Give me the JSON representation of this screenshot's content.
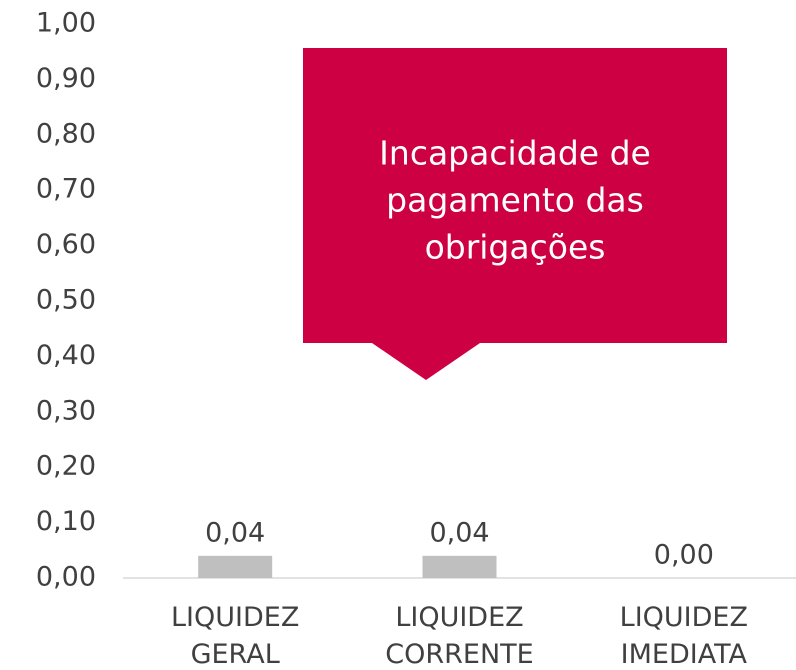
{
  "chart_data": {
    "type": "bar",
    "categories": [
      "LIQUIDEZ GERAL",
      "LIQUIDEZ CORRENTE",
      "LIQUIDEZ IMEDIATA"
    ],
    "values": [
      0.04,
      0.04,
      0.0
    ],
    "value_labels": [
      "0,04",
      "0,04",
      "0,00"
    ],
    "color": "#bfbfbf",
    "ylim": [
      0,
      1
    ],
    "yticks": [
      {
        "value": 0,
        "label": "0,00"
      },
      {
        "value": 0.1,
        "label": "0,10"
      },
      {
        "value": 0.2,
        "label": "0,20"
      },
      {
        "value": 0.3,
        "label": "0,30"
      },
      {
        "value": 0.4,
        "label": "0,40"
      },
      {
        "value": 0.5,
        "label": "0,50"
      },
      {
        "value": 0.6,
        "label": "0,60"
      },
      {
        "value": 0.7,
        "label": "0,70"
      },
      {
        "value": 0.8,
        "label": "0,80"
      },
      {
        "value": 0.9,
        "label": "0,90"
      },
      {
        "value": 1,
        "label": "1,00"
      }
    ],
    "grid": false,
    "annotation": [
      "Incapacidade de",
      "pagamento das",
      "obrigações"
    ],
    "annotation_color": "#cc0042"
  }
}
